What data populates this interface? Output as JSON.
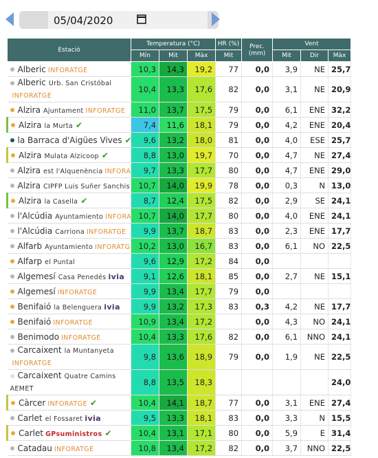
{
  "date": "05/04/2020",
  "header": {
    "station": "Estació",
    "temperature": "Temperatura (°C)",
    "humidity": "HR (%)",
    "precipitation": "Prec. (mm)",
    "wind": "Vent",
    "sub": [
      "Mín",
      "Mit",
      "Màx",
      "Mit",
      "Mit",
      "Dir",
      "Màx"
    ]
  },
  "rows": [
    {
      "name": "Alberic",
      "place": null,
      "network": "INFORATGE",
      "check": false,
      "dot": "#b5b5b5",
      "values": [
        "10,3",
        "14,3",
        "19,2",
        "77",
        "0,0",
        "3,9",
        "NE",
        "25,7"
      ]
    },
    {
      "name": "Alberic",
      "place": "Urb. San Cristóbal",
      "network": "INFORATGE",
      "check": false,
      "dot": "#b5b5b5",
      "values": [
        "10,4",
        "13,3",
        "17,6",
        "82",
        "0,0",
        "3,1",
        "NE",
        "20,9"
      ]
    },
    {
      "name": "Alzira",
      "place": "Ajuntament",
      "network": "INFORATGE",
      "check": false,
      "dot": "#e8a93a",
      "values": [
        "11,0",
        "13,7",
        "17,5",
        "79",
        "0,0",
        "6,1",
        "ENE",
        "32,2"
      ]
    },
    {
      "name": "Alzira",
      "place": "la Murta",
      "network": null,
      "check": true,
      "dot": "#e8a93a",
      "values": [
        "7,4",
        "11,6",
        "18,1",
        "79",
        "0,0",
        "4,2",
        "ENE",
        "20,4"
      ]
    },
    {
      "name": "la Barraca d'Aigües Vives",
      "place": null,
      "network": null,
      "check": true,
      "dot": "#1f5a5a",
      "values": [
        "9,6",
        "13,2",
        "18,0",
        "81",
        "0,0",
        "4,0",
        "ESE",
        "25,7"
      ]
    },
    {
      "name": "Alzira",
      "place": "Mulata Alzicoop",
      "network": null,
      "check": true,
      "dot": "#e8a93a",
      "values": [
        "8,8",
        "13,0",
        "19,7",
        "70",
        "0,0",
        "4,7",
        "NE",
        "27,4"
      ]
    },
    {
      "name": "Alzira",
      "place": "est l'Alquenència",
      "network": "INFORATGE",
      "check": false,
      "dot": "#b5b5b5",
      "values": [
        "9,7",
        "13,3",
        "17,7",
        "80",
        "0,0",
        "4,7",
        "ENE",
        "29,0"
      ]
    },
    {
      "name": "Alzira",
      "place": "CIPFP Luis Suñer Sanchis",
      "network": null,
      "check": false,
      "dot": "#b5b5b5",
      "values": [
        "10,7",
        "14,0",
        "19,9",
        "78",
        "0,0",
        "0,3",
        "N",
        "13,0"
      ]
    },
    {
      "name": "Alzira",
      "place": "la Casella",
      "network": null,
      "check": true,
      "dot": "#e8a93a",
      "values": [
        "8,7",
        "12,4",
        "17,5",
        "82",
        "0,0",
        "2,9",
        "SE",
        "24,1"
      ]
    },
    {
      "name": "l'Alcúdia",
      "place": "Ayuntamiento",
      "network": "INFORATGE",
      "check": false,
      "dot": "#b5b5b5",
      "values": [
        "10,7",
        "14,0",
        "17,7",
        "80",
        "0,0",
        "4,0",
        "ENE",
        "24,1"
      ]
    },
    {
      "name": "l'Alcúdia",
      "place": "Carriona",
      "network": "INFORATGE",
      "check": false,
      "dot": "#b5b5b5",
      "values": [
        "9,9",
        "13,7",
        "18,7",
        "83",
        "0,0",
        "2,3",
        "ENE",
        "17,7"
      ]
    },
    {
      "name": "Alfarb",
      "place": "Ayuntamiento",
      "network": "INFORATGE",
      "check": false,
      "dot": "#b5b5b5",
      "values": [
        "10,2",
        "13,0",
        "16,7",
        "83",
        "0,0",
        "6,1",
        "NO",
        "22,5"
      ]
    },
    {
      "name": "Alfarp",
      "place": "el Puntal",
      "network": null,
      "check": false,
      "dot": "#e8a93a",
      "values": [
        "9,6",
        "12,9",
        "17,2",
        "84",
        "0,0",
        null,
        null,
        null
      ]
    },
    {
      "name": "Algemesí",
      "place": "Casa Penedés",
      "network": "ivia",
      "check": false,
      "dot": "#b5b5b5",
      "values": [
        "9,1",
        "12,6",
        "18,1",
        "85",
        "0,0",
        "2,7",
        "NE",
        "15,1"
      ]
    },
    {
      "name": "Algemesí",
      "place": null,
      "network": "INFORATGE",
      "check": false,
      "dot": "#e8a93a",
      "values": [
        "9,9",
        "13,4",
        "17,7",
        "79",
        "0,0",
        null,
        null,
        null
      ]
    },
    {
      "name": "Benifaió",
      "place": "la Belenguera",
      "network": "ivia",
      "check": false,
      "dot": "#e8a93a",
      "values": [
        "9,9",
        "13,2",
        "17,3",
        "83",
        "0,3",
        "4,2",
        "NE",
        "17,7"
      ]
    },
    {
      "name": "Benifaió",
      "place": null,
      "network": "INFORATGE",
      "check": false,
      "dot": "#e8a93a",
      "values": [
        "10,9",
        "13,4",
        "17,2",
        null,
        "0,0",
        "4,3",
        "NO",
        "24,1"
      ]
    },
    {
      "name": "Benimodo",
      "place": null,
      "network": "INFORATGE",
      "check": false,
      "dot": "#b5b5b5",
      "values": [
        "10,4",
        "13,3",
        "17,6",
        "82",
        "0,0",
        "6,1",
        "NNO",
        "24,1"
      ]
    },
    {
      "name": "Carcaixent",
      "place": "la Muntanyeta",
      "network": "INFORATGE",
      "check": false,
      "dot": "#b5b5b5",
      "values": [
        "9,8",
        "13,6",
        "18,9",
        "79",
        "0,0",
        "1,9",
        "NE",
        "22,5"
      ]
    },
    {
      "name": "Carcaixent",
      "place": "Quatre Camins",
      "network": "AEMET",
      "check": false,
      "dot": "#e0e0e0",
      "values": [
        "8,8",
        "13,5",
        "18,3",
        null,
        null,
        null,
        null,
        "24,0"
      ]
    },
    {
      "name": "Càrcer",
      "place": null,
      "network": "INFORATGE",
      "check": true,
      "dot": "#e8a93a",
      "values": [
        "10,4",
        "14,1",
        "18,7",
        "77",
        "0,0",
        "3,1",
        "ENE",
        "27,4"
      ]
    },
    {
      "name": "Carlet",
      "place": "el Fossaret",
      "network": "ivia",
      "check": false,
      "dot": "#b5b5b5",
      "values": [
        "9,5",
        "13,3",
        "18,1",
        "83",
        "0,0",
        "3,3",
        "N",
        "15,5"
      ]
    },
    {
      "name": "Carlet",
      "place": null,
      "network": "GPsuministros",
      "check": true,
      "dot": "#e8a93a",
      "values": [
        "10,4",
        "13,1",
        "17,1",
        "80",
        "0,0",
        "5,9",
        "E",
        "31,4"
      ]
    },
    {
      "name": "Catadau",
      "place": null,
      "network": "INFORATGE",
      "check": false,
      "dot": "#b5b5b5",
      "values": [
        "10,8",
        "13,4",
        "17,2",
        "82",
        "0,0",
        "3,7",
        "NNO",
        "22,5"
      ]
    }
  ]
}
